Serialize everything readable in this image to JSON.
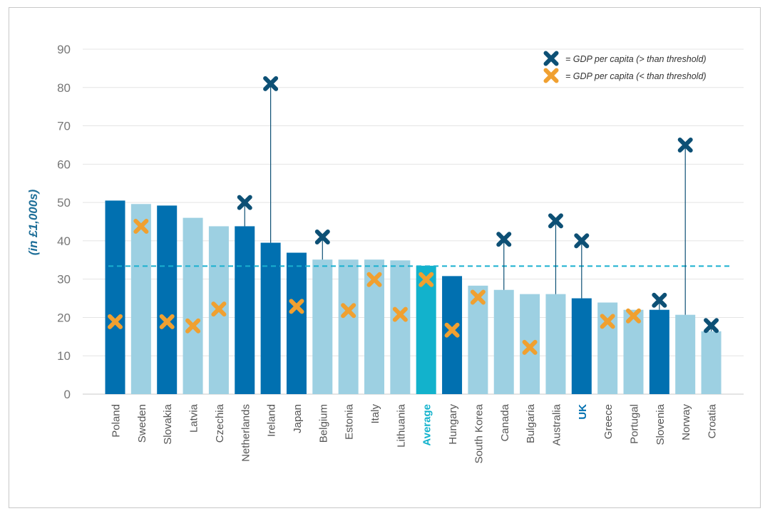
{
  "chart_data": {
    "type": "bar",
    "ylabel": "(in £1,000s)",
    "ylim": [
      0,
      90
    ],
    "yticks": [
      0,
      10,
      20,
      30,
      40,
      50,
      60,
      70,
      80,
      90
    ],
    "grid": true,
    "legend_position": "top-right",
    "legend": [
      {
        "marker": "x",
        "color": "#0d5075",
        "label": "= GDP per capita (> than threshold)"
      },
      {
        "marker": "x",
        "color": "#f0a030",
        "label": "= GDP per capita (< than threshold)"
      }
    ],
    "threshold_line": {
      "value": 33.4,
      "color": "#1ab0d0",
      "style": "dashed"
    },
    "colors": {
      "dark": "#0170b0",
      "light": "#9dd0e2",
      "average": "#12b2cc",
      "marker_high": "#0d5075",
      "marker_low": "#f0a030",
      "uk_label": "#0170b0",
      "average_label": "#12b2cc"
    },
    "categories": [
      "Poland",
      "Sweden",
      "Slovakia",
      "Latvia",
      "Czechia",
      "Netherlands",
      "Ireland",
      "Japan",
      "Belgium",
      "Estonia",
      "Italy",
      "Lithuania",
      "Average",
      "Hungary",
      "South Korea",
      "Canada",
      "Bulgaria",
      "Australia",
      "UK",
      "Greece",
      "Portugal",
      "Slovenia",
      "Norway",
      "Croatia"
    ],
    "bar_style": [
      "dark",
      "light",
      "dark",
      "light",
      "light",
      "dark",
      "dark",
      "dark",
      "light",
      "light",
      "light",
      "light",
      "average",
      "dark",
      "light",
      "light",
      "light",
      "light",
      "dark",
      "light",
      "light",
      "dark",
      "light",
      "light"
    ],
    "values": [
      50.5,
      49.6,
      49.2,
      46.0,
      43.8,
      43.8,
      39.5,
      36.9,
      35.1,
      35.1,
      35.1,
      34.9,
      33.5,
      30.8,
      28.3,
      27.2,
      26.1,
      26.1,
      25.0,
      23.9,
      22.0,
      22.0,
      20.7,
      16.4
    ],
    "gdp_per_capita": [
      18.9,
      43.8,
      18.9,
      17.8,
      22.2,
      50.0,
      81.0,
      22.9,
      41.0,
      21.8,
      29.9,
      20.8,
      29.9,
      16.7,
      25.3,
      40.4,
      12.2,
      45.2,
      40.0,
      19.0,
      20.4,
      24.5,
      65.0,
      17.9
    ],
    "gdp_marker": [
      "low",
      "low",
      "low",
      "low",
      "low",
      "high",
      "high",
      "low",
      "high",
      "low",
      "low",
      "low",
      "low",
      "low",
      "low",
      "high",
      "low",
      "high",
      "high",
      "low",
      "low",
      "high",
      "high",
      "high"
    ]
  }
}
